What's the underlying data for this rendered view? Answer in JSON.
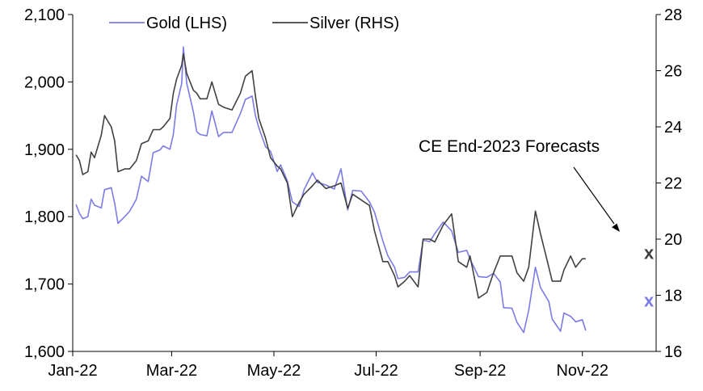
{
  "chart_data": {
    "type": "line",
    "legend": {
      "position": "top-left"
    },
    "x_ticks": [
      "Jan-22",
      "Mar-22",
      "May-22",
      "Jul-22",
      "Sep-22",
      "Nov-22"
    ],
    "x_range": [
      "2022-01-01",
      "2022-12-15"
    ],
    "y_left": {
      "min": 1600,
      "max": 2100,
      "ticks": [
        "1,600",
        "1,700",
        "1,800",
        "1,900",
        "2,000",
        "2,100"
      ]
    },
    "y_right": {
      "min": 16,
      "max": 28,
      "ticks": [
        "16",
        "18",
        "20",
        "22",
        "24",
        "26",
        "28"
      ]
    },
    "grid": false,
    "series": [
      {
        "name": "Gold (LHS)",
        "axis": "left",
        "color": "#7b7be8",
        "points": [
          [
            "2022-01-03",
            1818
          ],
          [
            "2022-01-05",
            1805
          ],
          [
            "2022-01-07",
            1797
          ],
          [
            "2022-01-10",
            1800
          ],
          [
            "2022-01-12",
            1826
          ],
          [
            "2022-01-14",
            1817
          ],
          [
            "2022-01-18",
            1813
          ],
          [
            "2022-01-20",
            1840
          ],
          [
            "2022-01-24",
            1843
          ],
          [
            "2022-01-26",
            1820
          ],
          [
            "2022-01-28",
            1790
          ],
          [
            "2022-02-01",
            1800
          ],
          [
            "2022-02-04",
            1808
          ],
          [
            "2022-02-08",
            1826
          ],
          [
            "2022-02-11",
            1860
          ],
          [
            "2022-02-15",
            1852
          ],
          [
            "2022-02-18",
            1895
          ],
          [
            "2022-02-22",
            1899
          ],
          [
            "2022-02-24",
            1905
          ],
          [
            "2022-02-28",
            1900
          ],
          [
            "2022-03-02",
            1922
          ],
          [
            "2022-03-04",
            1966
          ],
          [
            "2022-03-07",
            1998
          ],
          [
            "2022-03-08",
            2052
          ],
          [
            "2022-03-10",
            1998
          ],
          [
            "2022-03-14",
            1955
          ],
          [
            "2022-03-16",
            1926
          ],
          [
            "2022-03-18",
            1922
          ],
          [
            "2022-03-22",
            1920
          ],
          [
            "2022-03-25",
            1957
          ],
          [
            "2022-03-29",
            1919
          ],
          [
            "2022-04-01",
            1925
          ],
          [
            "2022-04-06",
            1925
          ],
          [
            "2022-04-11",
            1953
          ],
          [
            "2022-04-14",
            1974
          ],
          [
            "2022-04-18",
            1979
          ],
          [
            "2022-04-20",
            1950
          ],
          [
            "2022-04-22",
            1932
          ],
          [
            "2022-04-26",
            1904
          ],
          [
            "2022-04-29",
            1897
          ],
          [
            "2022-05-03",
            1867
          ],
          [
            "2022-05-05",
            1877
          ],
          [
            "2022-05-09",
            1853
          ],
          [
            "2022-05-12",
            1822
          ],
          [
            "2022-05-16",
            1815
          ],
          [
            "2022-05-19",
            1840
          ],
          [
            "2022-05-24",
            1865
          ],
          [
            "2022-05-27",
            1851
          ],
          [
            "2022-06-01",
            1847
          ],
          [
            "2022-06-06",
            1841
          ],
          [
            "2022-06-10",
            1871
          ],
          [
            "2022-06-14",
            1810
          ],
          [
            "2022-06-17",
            1839
          ],
          [
            "2022-06-22",
            1838
          ],
          [
            "2022-06-27",
            1822
          ],
          [
            "2022-06-30",
            1807
          ],
          [
            "2022-07-05",
            1764
          ],
          [
            "2022-07-08",
            1742
          ],
          [
            "2022-07-12",
            1725
          ],
          [
            "2022-07-14",
            1708
          ],
          [
            "2022-07-18",
            1710
          ],
          [
            "2022-07-21",
            1718
          ],
          [
            "2022-07-26",
            1718
          ],
          [
            "2022-07-29",
            1765
          ],
          [
            "2022-08-02",
            1763
          ],
          [
            "2022-08-05",
            1775
          ],
          [
            "2022-08-10",
            1792
          ],
          [
            "2022-08-15",
            1779
          ],
          [
            "2022-08-19",
            1747
          ],
          [
            "2022-08-24",
            1750
          ],
          [
            "2022-08-26",
            1737
          ],
          [
            "2022-08-31",
            1711
          ],
          [
            "2022-09-05",
            1710
          ],
          [
            "2022-09-09",
            1716
          ],
          [
            "2022-09-13",
            1703
          ],
          [
            "2022-09-15",
            1665
          ],
          [
            "2022-09-20",
            1664
          ],
          [
            "2022-09-23",
            1643
          ],
          [
            "2022-09-27",
            1628
          ],
          [
            "2022-09-30",
            1661
          ],
          [
            "2022-10-04",
            1725
          ],
          [
            "2022-10-07",
            1695
          ],
          [
            "2022-10-12",
            1674
          ],
          [
            "2022-10-14",
            1648
          ],
          [
            "2022-10-19",
            1630
          ],
          [
            "2022-10-21",
            1657
          ],
          [
            "2022-10-25",
            1652
          ],
          [
            "2022-10-28",
            1644
          ],
          [
            "2022-11-01",
            1647
          ],
          [
            "2022-11-03",
            1631
          ]
        ]
      },
      {
        "name": "Silver (RHS)",
        "axis": "right",
        "color": "#404040",
        "points": [
          [
            "2022-01-03",
            23.0
          ],
          [
            "2022-01-05",
            22.8
          ],
          [
            "2022-01-07",
            22.3
          ],
          [
            "2022-01-10",
            22.4
          ],
          [
            "2022-01-12",
            23.1
          ],
          [
            "2022-01-14",
            22.9
          ],
          [
            "2022-01-18",
            23.7
          ],
          [
            "2022-01-20",
            24.4
          ],
          [
            "2022-01-24",
            24.0
          ],
          [
            "2022-01-26",
            23.5
          ],
          [
            "2022-01-28",
            22.4
          ],
          [
            "2022-02-01",
            22.5
          ],
          [
            "2022-02-04",
            22.5
          ],
          [
            "2022-02-08",
            22.8
          ],
          [
            "2022-02-11",
            23.4
          ],
          [
            "2022-02-15",
            23.5
          ],
          [
            "2022-02-18",
            23.9
          ],
          [
            "2022-02-22",
            23.9
          ],
          [
            "2022-02-24",
            24.0
          ],
          [
            "2022-02-28",
            24.3
          ],
          [
            "2022-03-02",
            25.2
          ],
          [
            "2022-03-04",
            25.7
          ],
          [
            "2022-03-07",
            26.2
          ],
          [
            "2022-03-08",
            26.6
          ],
          [
            "2022-03-10",
            25.9
          ],
          [
            "2022-03-14",
            25.3
          ],
          [
            "2022-03-16",
            25.2
          ],
          [
            "2022-03-18",
            25.0
          ],
          [
            "2022-03-22",
            25.0
          ],
          [
            "2022-03-25",
            25.6
          ],
          [
            "2022-03-29",
            24.8
          ],
          [
            "2022-04-01",
            24.7
          ],
          [
            "2022-04-06",
            24.6
          ],
          [
            "2022-04-11",
            25.2
          ],
          [
            "2022-04-14",
            25.8
          ],
          [
            "2022-04-18",
            26.0
          ],
          [
            "2022-04-20",
            25.1
          ],
          [
            "2022-04-22",
            24.3
          ],
          [
            "2022-04-26",
            23.6
          ],
          [
            "2022-04-29",
            22.9
          ],
          [
            "2022-05-03",
            22.6
          ],
          [
            "2022-05-05",
            22.5
          ],
          [
            "2022-05-09",
            22.0
          ],
          [
            "2022-05-12",
            20.8
          ],
          [
            "2022-05-16",
            21.3
          ],
          [
            "2022-05-19",
            21.6
          ],
          [
            "2022-05-24",
            21.9
          ],
          [
            "2022-05-27",
            22.1
          ],
          [
            "2022-06-01",
            21.8
          ],
          [
            "2022-06-06",
            21.9
          ],
          [
            "2022-06-10",
            22.0
          ],
          [
            "2022-06-14",
            21.1
          ],
          [
            "2022-06-17",
            21.6
          ],
          [
            "2022-06-22",
            21.4
          ],
          [
            "2022-06-27",
            21.2
          ],
          [
            "2022-06-30",
            20.3
          ],
          [
            "2022-07-05",
            19.2
          ],
          [
            "2022-07-08",
            19.2
          ],
          [
            "2022-07-12",
            18.7
          ],
          [
            "2022-07-14",
            18.3
          ],
          [
            "2022-07-18",
            18.5
          ],
          [
            "2022-07-21",
            18.7
          ],
          [
            "2022-07-26",
            18.3
          ],
          [
            "2022-07-29",
            20.0
          ],
          [
            "2022-08-02",
            20.0
          ],
          [
            "2022-08-05",
            19.9
          ],
          [
            "2022-08-10",
            20.5
          ],
          [
            "2022-08-15",
            20.9
          ],
          [
            "2022-08-19",
            19.2
          ],
          [
            "2022-08-24",
            19.0
          ],
          [
            "2022-08-26",
            19.4
          ],
          [
            "2022-08-31",
            17.9
          ],
          [
            "2022-09-05",
            18.1
          ],
          [
            "2022-09-09",
            18.8
          ],
          [
            "2022-09-13",
            19.4
          ],
          [
            "2022-09-15",
            19.4
          ],
          [
            "2022-09-20",
            19.4
          ],
          [
            "2022-09-23",
            18.8
          ],
          [
            "2022-09-27",
            18.5
          ],
          [
            "2022-09-30",
            19.0
          ],
          [
            "2022-10-04",
            21.0
          ],
          [
            "2022-10-07",
            20.2
          ],
          [
            "2022-10-12",
            19.0
          ],
          [
            "2022-10-14",
            18.5
          ],
          [
            "2022-10-19",
            18.5
          ],
          [
            "2022-10-21",
            18.9
          ],
          [
            "2022-10-25",
            19.4
          ],
          [
            "2022-10-28",
            19.0
          ],
          [
            "2022-11-01",
            19.3
          ],
          [
            "2022-11-03",
            19.3
          ]
        ]
      }
    ],
    "forecasts": {
      "label": "CE End-2023 Forecasts",
      "gold": {
        "date": "2022-12-15",
        "value": 1675,
        "marker": "x",
        "color": "#7b7be8"
      },
      "silver": {
        "date": "2022-12-15",
        "value": 19.5,
        "marker": "x",
        "color": "#404040"
      }
    }
  }
}
